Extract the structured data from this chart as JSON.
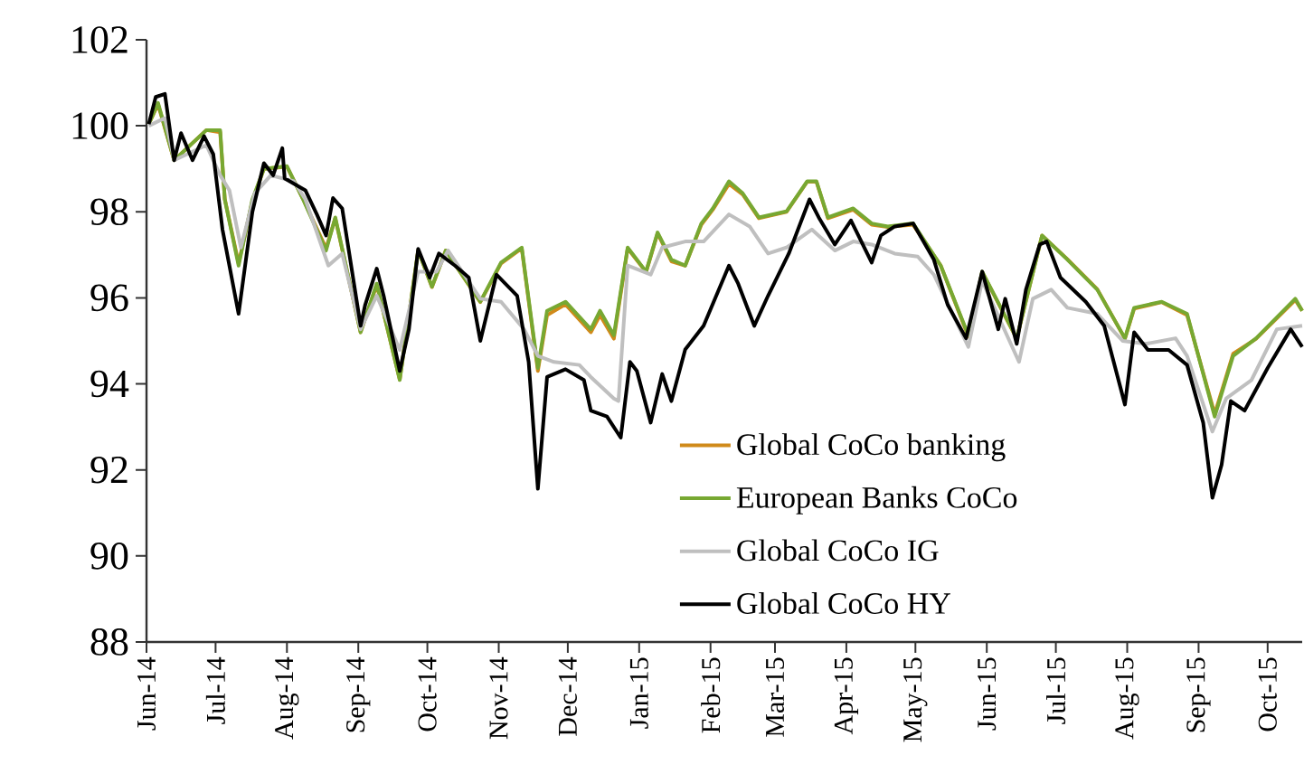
{
  "chart_data": {
    "type": "line",
    "xlim": [
      "2014-06-01",
      "2015-10-16"
    ],
    "ylim": [
      88,
      102
    ],
    "yticks": [
      88,
      90,
      92,
      94,
      96,
      98,
      100,
      102
    ],
    "xticks": [
      {
        "value": "2014-06-01",
        "label": "Jun-14"
      },
      {
        "value": "2014-07-01",
        "label": "Jul-14"
      },
      {
        "value": "2014-08-01",
        "label": "Aug-14"
      },
      {
        "value": "2014-09-01",
        "label": "Sep-14"
      },
      {
        "value": "2014-10-01",
        "label": "Oct-14"
      },
      {
        "value": "2014-11-01",
        "label": "Nov-14"
      },
      {
        "value": "2014-12-01",
        "label": "Dec-14"
      },
      {
        "value": "2015-01-01",
        "label": "Jan-15"
      },
      {
        "value": "2015-02-01",
        "label": "Feb-15"
      },
      {
        "value": "2015-03-01",
        "label": "Mar-15"
      },
      {
        "value": "2015-04-01",
        "label": "Apr-15"
      },
      {
        "value": "2015-05-01",
        "label": "May-15"
      },
      {
        "value": "2015-06-01",
        "label": "Jun-15"
      },
      {
        "value": "2015-07-01",
        "label": "Jul-15"
      },
      {
        "value": "2015-08-01",
        "label": "Aug-15"
      },
      {
        "value": "2015-09-01",
        "label": "Sep-15"
      },
      {
        "value": "2015-10-01",
        "label": "Oct-15"
      }
    ],
    "legend": "bottom right",
    "grid": false,
    "line_style": "solid",
    "series": [
      {
        "name": "Global CoCo banking",
        "color": "#d08a1a",
        "x": [
          "2014-06-02",
          "2014-06-06",
          "2014-06-13",
          "2014-06-27",
          "2014-07-03",
          "2014-07-05",
          "2014-07-11",
          "2014-07-17",
          "2014-07-22",
          "2014-08-01",
          "2014-08-08",
          "2014-08-18",
          "2014-08-22",
          "2014-09-02",
          "2014-09-09",
          "2014-09-19",
          "2014-09-27",
          "2014-10-03",
          "2014-10-09",
          "2014-10-24",
          "2014-11-02",
          "2014-11-11",
          "2014-11-18",
          "2014-11-22",
          "2014-11-30",
          "2014-12-11",
          "2014-12-15",
          "2014-12-21",
          "2014-12-27",
          "2015-01-04",
          "2015-01-09",
          "2015-01-15",
          "2015-01-21",
          "2015-01-28",
          "2015-02-02",
          "2015-02-09",
          "2015-02-15",
          "2015-02-22",
          "2015-03-06",
          "2015-03-15",
          "2015-03-19",
          "2015-03-24",
          "2015-04-04",
          "2015-04-12",
          "2015-04-19",
          "2015-04-30",
          "2015-05-12",
          "2015-05-24",
          "2015-05-30",
          "2015-06-14",
          "2015-06-25",
          "2015-07-06",
          "2015-07-19",
          "2015-07-31",
          "2015-08-04",
          "2015-08-16",
          "2015-08-27",
          "2015-09-08",
          "2015-09-16",
          "2015-09-26",
          "2015-10-13",
          "2015-10-16"
        ],
        "values": [
          100.04,
          100.5,
          99.2,
          99.9,
          99.85,
          98.3,
          96.8,
          98.25,
          99.0,
          99.05,
          98.3,
          97.15,
          97.85,
          95.2,
          96.3,
          94.1,
          97.1,
          96.25,
          97.1,
          95.9,
          96.8,
          97.15,
          94.3,
          95.6,
          95.85,
          95.2,
          95.6,
          95.05,
          97.15,
          96.6,
          97.5,
          96.85,
          96.75,
          97.7,
          98.05,
          98.65,
          98.4,
          97.85,
          98.0,
          98.7,
          98.7,
          97.85,
          98.05,
          97.7,
          97.65,
          97.7,
          96.75,
          95.1,
          96.6,
          95.05,
          97.45,
          96.9,
          96.2,
          95.05,
          95.75,
          95.9,
          95.6,
          93.3,
          94.7,
          95.05,
          95.95,
          95.7
        ]
      },
      {
        "name": "European Banks CoCo",
        "color": "#77a832",
        "x": [
          "2014-06-02",
          "2014-06-06",
          "2014-06-13",
          "2014-06-27",
          "2014-07-03",
          "2014-07-05",
          "2014-07-11",
          "2014-07-17",
          "2014-07-22",
          "2014-08-01",
          "2014-08-08",
          "2014-08-18",
          "2014-08-22",
          "2014-09-02",
          "2014-09-09",
          "2014-09-19",
          "2014-09-27",
          "2014-10-03",
          "2014-10-09",
          "2014-10-24",
          "2014-11-02",
          "2014-11-11",
          "2014-11-18",
          "2014-11-22",
          "2014-11-30",
          "2014-12-11",
          "2014-12-15",
          "2014-12-21",
          "2014-12-27",
          "2015-01-04",
          "2015-01-09",
          "2015-01-15",
          "2015-01-21",
          "2015-01-28",
          "2015-02-02",
          "2015-02-09",
          "2015-02-15",
          "2015-02-22",
          "2015-03-06",
          "2015-03-15",
          "2015-03-19",
          "2015-03-24",
          "2015-04-04",
          "2015-04-12",
          "2015-04-19",
          "2015-04-30",
          "2015-05-12",
          "2015-05-24",
          "2015-05-30",
          "2015-06-14",
          "2015-06-25",
          "2015-07-06",
          "2015-07-19",
          "2015-07-31",
          "2015-08-04",
          "2015-08-16",
          "2015-08-27",
          "2015-09-08",
          "2015-09-16",
          "2015-09-26",
          "2015-10-13",
          "2015-10-16"
        ],
        "values": [
          100.04,
          100.53,
          99.2,
          99.9,
          99.9,
          98.29,
          96.75,
          98.29,
          99.0,
          99.06,
          98.29,
          97.1,
          97.87,
          95.2,
          96.33,
          94.09,
          97.1,
          96.26,
          97.1,
          95.91,
          96.82,
          97.17,
          94.37,
          95.7,
          95.91,
          95.27,
          95.7,
          95.13,
          97.17,
          96.61,
          97.52,
          96.89,
          96.75,
          97.73,
          98.08,
          98.71,
          98.43,
          97.87,
          98.01,
          98.71,
          98.71,
          97.87,
          98.08,
          97.73,
          97.66,
          97.73,
          96.75,
          95.13,
          96.61,
          95.06,
          97.45,
          96.89,
          96.19,
          95.06,
          95.77,
          95.91,
          95.63,
          93.24,
          94.65,
          95.06,
          95.98,
          95.7
        ]
      },
      {
        "name": "Global CoCo IG",
        "color": "#bfbfbf",
        "x": [
          "2014-06-02",
          "2014-06-09",
          "2014-06-13",
          "2014-06-27",
          "2014-07-03",
          "2014-07-07",
          "2014-07-12",
          "2014-07-18",
          "2014-07-25",
          "2014-08-04",
          "2014-08-09",
          "2014-08-19",
          "2014-08-25",
          "2014-09-02",
          "2014-09-09",
          "2014-09-19",
          "2014-09-27",
          "2014-10-05",
          "2014-10-10",
          "2014-10-24",
          "2014-11-02",
          "2014-11-12",
          "2014-11-18",
          "2014-11-25",
          "2014-12-06",
          "2014-12-11",
          "2014-12-21",
          "2014-12-23",
          "2014-12-27",
          "2015-01-06",
          "2015-01-11",
          "2015-01-21",
          "2015-01-29",
          "2015-02-09",
          "2015-02-18",
          "2015-02-26",
          "2015-03-06",
          "2015-03-17",
          "2015-03-27",
          "2015-04-04",
          "2015-04-12",
          "2015-04-22",
          "2015-05-02",
          "2015-05-09",
          "2015-05-24",
          "2015-05-30",
          "2015-06-15",
          "2015-06-21",
          "2015-06-29",
          "2015-07-06",
          "2015-07-19",
          "2015-07-30",
          "2015-08-09",
          "2015-08-22",
          "2015-08-27",
          "2015-09-07",
          "2015-09-13",
          "2015-09-24",
          "2015-10-05",
          "2015-10-16"
        ],
        "values": [
          100.0,
          100.18,
          99.2,
          99.55,
          98.85,
          98.5,
          97.17,
          98.43,
          98.85,
          98.71,
          98.29,
          96.75,
          97.03,
          95.27,
          96.05,
          94.79,
          96.61,
          96.61,
          97.1,
          95.98,
          95.91,
          95.27,
          94.65,
          94.51,
          94.44,
          94.16,
          93.66,
          93.6,
          96.75,
          96.54,
          97.17,
          97.31,
          97.31,
          97.94,
          97.66,
          97.03,
          97.17,
          97.59,
          97.1,
          97.31,
          97.24,
          97.03,
          96.96,
          96.54,
          94.86,
          96.4,
          94.51,
          95.98,
          96.19,
          95.77,
          95.63,
          95.0,
          94.93,
          95.06,
          94.65,
          92.89,
          93.66,
          94.09,
          95.27,
          95.35
        ]
      },
      {
        "name": "Global CoCo HY",
        "color": "#000000",
        "x": [
          "2014-06-02",
          "2014-06-05",
          "2014-06-09",
          "2014-06-13",
          "2014-06-16",
          "2014-06-21",
          "2014-06-26",
          "2014-06-30",
          "2014-07-04",
          "2014-07-08",
          "2014-07-11",
          "2014-07-17",
          "2014-07-22",
          "2014-07-26",
          "2014-07-30",
          "2014-07-31",
          "2014-08-09",
          "2014-08-14",
          "2014-08-18",
          "2014-08-21",
          "2014-08-25",
          "2014-09-02",
          "2014-09-04",
          "2014-09-09",
          "2014-09-12",
          "2014-09-19",
          "2014-09-23",
          "2014-09-27",
          "2014-10-02",
          "2014-10-06",
          "2014-10-13",
          "2014-10-19",
          "2014-10-24",
          "2014-10-31",
          "2014-11-09",
          "2014-11-14",
          "2014-11-18",
          "2014-11-22",
          "2014-11-30",
          "2014-12-08",
          "2014-12-11",
          "2014-12-18",
          "2014-12-24",
          "2014-12-28",
          "2014-12-31",
          "2015-01-06",
          "2015-01-11",
          "2015-01-15",
          "2015-01-21",
          "2015-01-29",
          "2015-02-09",
          "2015-02-13",
          "2015-02-20",
          "2015-02-26",
          "2015-03-07",
          "2015-03-16",
          "2015-03-20",
          "2015-03-27",
          "2015-04-03",
          "2015-04-12",
          "2015-04-16",
          "2015-04-22",
          "2015-04-30",
          "2015-05-09",
          "2015-05-15",
          "2015-05-23",
          "2015-05-30",
          "2015-06-06",
          "2015-06-09",
          "2015-06-14",
          "2015-06-18",
          "2015-06-24",
          "2015-06-27",
          "2015-07-03",
          "2015-07-14",
          "2015-07-22",
          "2015-07-31",
          "2015-08-04",
          "2015-08-10",
          "2015-08-19",
          "2015-08-27",
          "2015-09-03",
          "2015-09-07",
          "2015-09-11",
          "2015-09-15",
          "2015-09-21",
          "2015-10-01",
          "2015-10-11",
          "2015-10-16"
        ],
        "values": [
          100.04,
          100.67,
          100.74,
          99.2,
          99.83,
          99.2,
          99.76,
          99.34,
          97.59,
          96.47,
          95.63,
          98.0,
          99.13,
          98.85,
          99.48,
          98.78,
          98.5,
          97.94,
          97.45,
          98.32,
          98.08,
          95.35,
          95.84,
          96.68,
          96.05,
          94.3,
          95.27,
          97.14,
          96.47,
          97.03,
          96.75,
          96.47,
          95.0,
          96.54,
          96.05,
          94.51,
          91.56,
          94.16,
          94.34,
          94.09,
          93.38,
          93.24,
          92.75,
          94.51,
          94.3,
          93.1,
          94.23,
          93.6,
          94.8,
          95.35,
          96.75,
          96.33,
          95.35,
          96.05,
          97.03,
          98.29,
          97.87,
          97.24,
          97.8,
          96.82,
          97.45,
          97.66,
          97.73,
          96.89,
          95.84,
          95.06,
          96.61,
          95.27,
          95.98,
          94.93,
          96.19,
          97.24,
          97.31,
          96.47,
          95.91,
          95.35,
          93.52,
          95.2,
          94.79,
          94.79,
          94.44,
          93.1,
          91.35,
          92.12,
          93.6,
          93.38,
          94.37,
          95.27,
          94.86
        ]
      }
    ]
  }
}
